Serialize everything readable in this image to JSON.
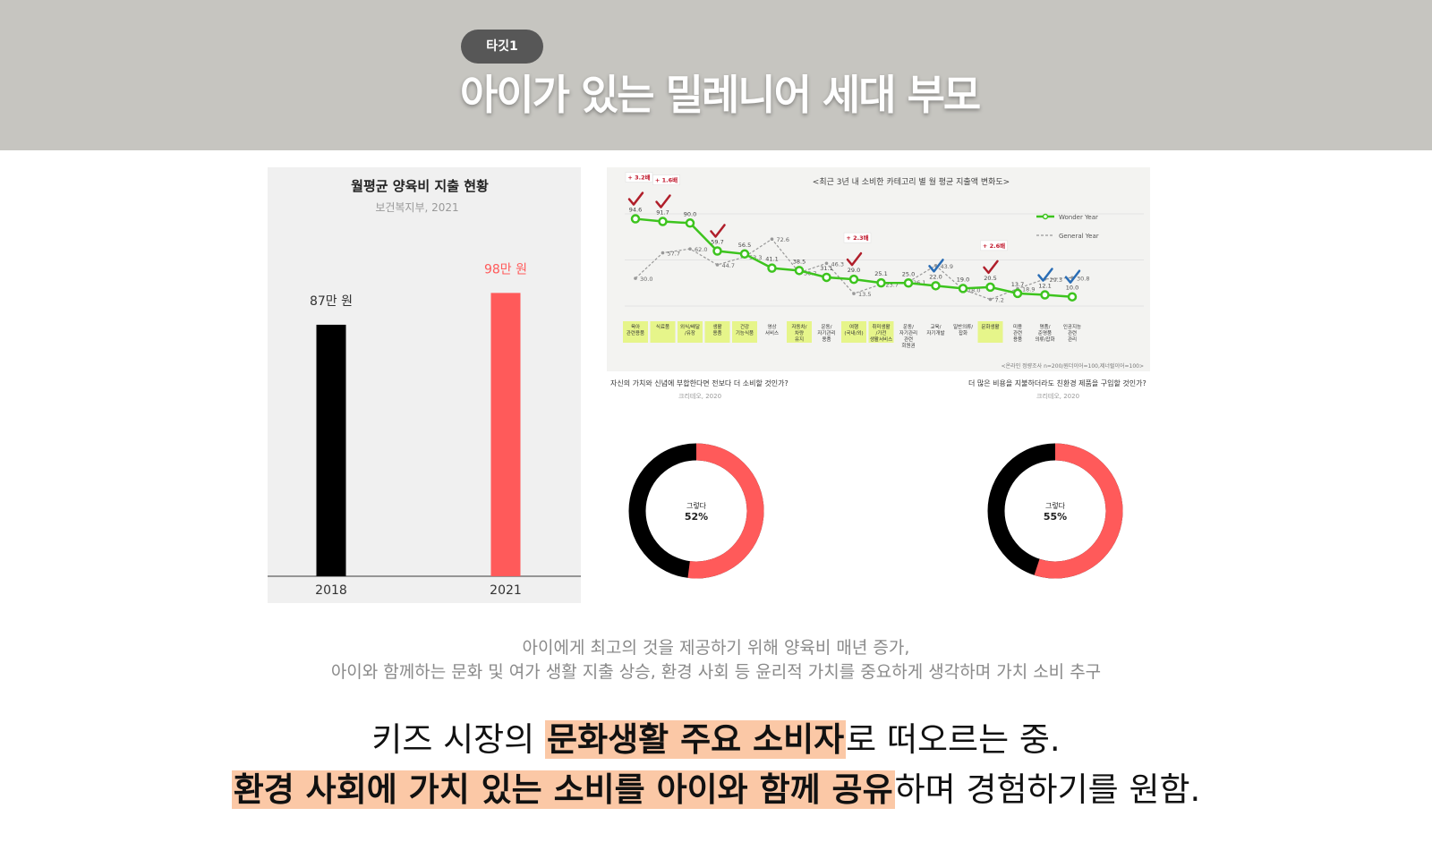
{
  "header": {
    "tag": "타깃1",
    "title": "아이가 있는 밀레니어 세대 부모"
  },
  "bar_chart": {
    "title": "월평균 양육비 지출 현황",
    "source": "보건복지부, 2021",
    "colors": [
      "#000000",
      "#ff5a5a"
    ]
  },
  "line_chart": {
    "title": "<최근 3년 내 소비한 카테고리 별 월 평균 지출액 변화도>",
    "legend": [
      "Wonder Year",
      "General Year"
    ],
    "footnote": "<온라인 정량조사 n=200/원더이어=100,제너럴이어=100>",
    "callouts": [
      "+ 3.2배",
      "+ 1.6배",
      "+ 2.3배",
      "+ 2.6배"
    ],
    "colors": {
      "wonder": "#3dc41e",
      "general": "#999999",
      "check_red": "#b01e2a",
      "check_blue": "#2a6db5"
    }
  },
  "survey": {
    "left": {
      "question": "자신의 가치와 신념에 부합한다면 전보다 더 소비할 것인가?",
      "source": "크리테오, 2020",
      "label": "그렇다",
      "value_text": "52%",
      "value": 52
    },
    "right": {
      "question": "더 많은 비용을 지불하더라도 친환경 제품을 구입할 것인가?",
      "source": "크리테오, 2020",
      "label": "그렇다",
      "value_text": "55%",
      "value": 55
    },
    "colors": {
      "yes": "#ff5a5a",
      "no": "#000000"
    }
  },
  "description": {
    "line1": "아이에게 최고의 것을 제공하기 위해 양육비 매년 증가,",
    "line2": "아이와 함께하는 문화 및 여가 생활 지출 상승, 환경 사회 등 윤리적 가치를 중요하게 생각하며 가치 소비 추구"
  },
  "headline": {
    "line1_pre": "키즈 시장의 ",
    "line1_hl": "문화생활 주요 소비자",
    "line1_post": "로 떠오르는 중.",
    "line2_hl": "환경 사회에 가치 있는 소비를 아이와 함께 공유",
    "line2_post": "하며 경험하기를 원함."
  },
  "chart_data": [
    {
      "type": "bar",
      "title": "월평균 양육비 지출 현황",
      "subtitle": "보건복지부, 2021",
      "categories": [
        "2018",
        "2021"
      ],
      "values": [
        87,
        98
      ],
      "value_labels": [
        "87만 원",
        "98만 원"
      ],
      "ylim": [
        0,
        130
      ]
    },
    {
      "type": "line",
      "title": "<최근 3년 내 소비한 카테고리 별 월 평균 지출액 변화도>",
      "categories": [
        "육아 관련용품",
        "식료품",
        "외식/배달 /유장",
        "생활 용품",
        "건강 기능식품",
        "영상 서비스",
        "자동차/ 차량 유지",
        "운동/ 자기관리 용품",
        "여행 (국내/외)",
        "취미생활 /가전 생활서비스",
        "운동/ 자기관리 관련 회원권",
        "교육/ 자기개발",
        "일반의류/ 잡화",
        "문화생활",
        "미용 관련 용품",
        "명품/ 준명품 의류/잡화",
        "인공지능 관련 관리"
      ],
      "series": [
        {
          "name": "Wonder Year",
          "values": [
            94.6,
            91.7,
            90.0,
            59.7,
            56.5,
            41.1,
            38.5,
            31.1,
            29.0,
            25.1,
            25.0,
            22.0,
            19.0,
            20.5,
            13.7,
            12.1,
            10.0
          ]
        },
        {
          "name": "General Year",
          "values": [
            30.0,
            57.7,
            62.0,
            44.7,
            53.3,
            72.6,
            36.2,
            46.3,
            13.5,
            23.7,
            26.1,
            43.9,
            18.0,
            7.2,
            18.9,
            29.3,
            30.8
          ]
        }
      ],
      "ylim": [
        0,
        100
      ]
    },
    {
      "type": "pie",
      "title": "자신의 가치와 신념에 부합한다면 전보다 더 소비할 것인가?",
      "categories": [
        "그렇다",
        ""
      ],
      "values": [
        52,
        48
      ]
    },
    {
      "type": "pie",
      "title": "더 많은 비용을 지불하더라도 친환경 제품을 구입할 것인가?",
      "categories": [
        "그렇다",
        ""
      ],
      "values": [
        55,
        45
      ]
    }
  ]
}
